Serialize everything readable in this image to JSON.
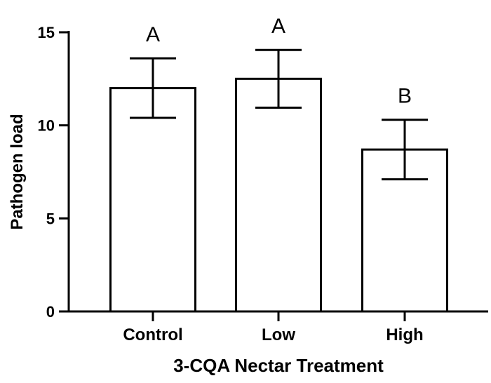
{
  "chart_data": {
    "type": "bar",
    "categories": [
      "Control",
      "Low",
      "High"
    ],
    "values": [
      12.0,
      12.5,
      8.7
    ],
    "error_bars": [
      1.6,
      1.55,
      1.6
    ],
    "significance_letters": [
      "A",
      "A",
      "B"
    ],
    "xlabel": "3-CQA Nectar Treatment",
    "ylabel": "Pathogen load",
    "ylim": [
      0,
      15
    ],
    "yticks": [
      0,
      5,
      10,
      15
    ],
    "ytick_labels": [
      "0",
      "5",
      "10",
      "15"
    ],
    "grid": false
  }
}
